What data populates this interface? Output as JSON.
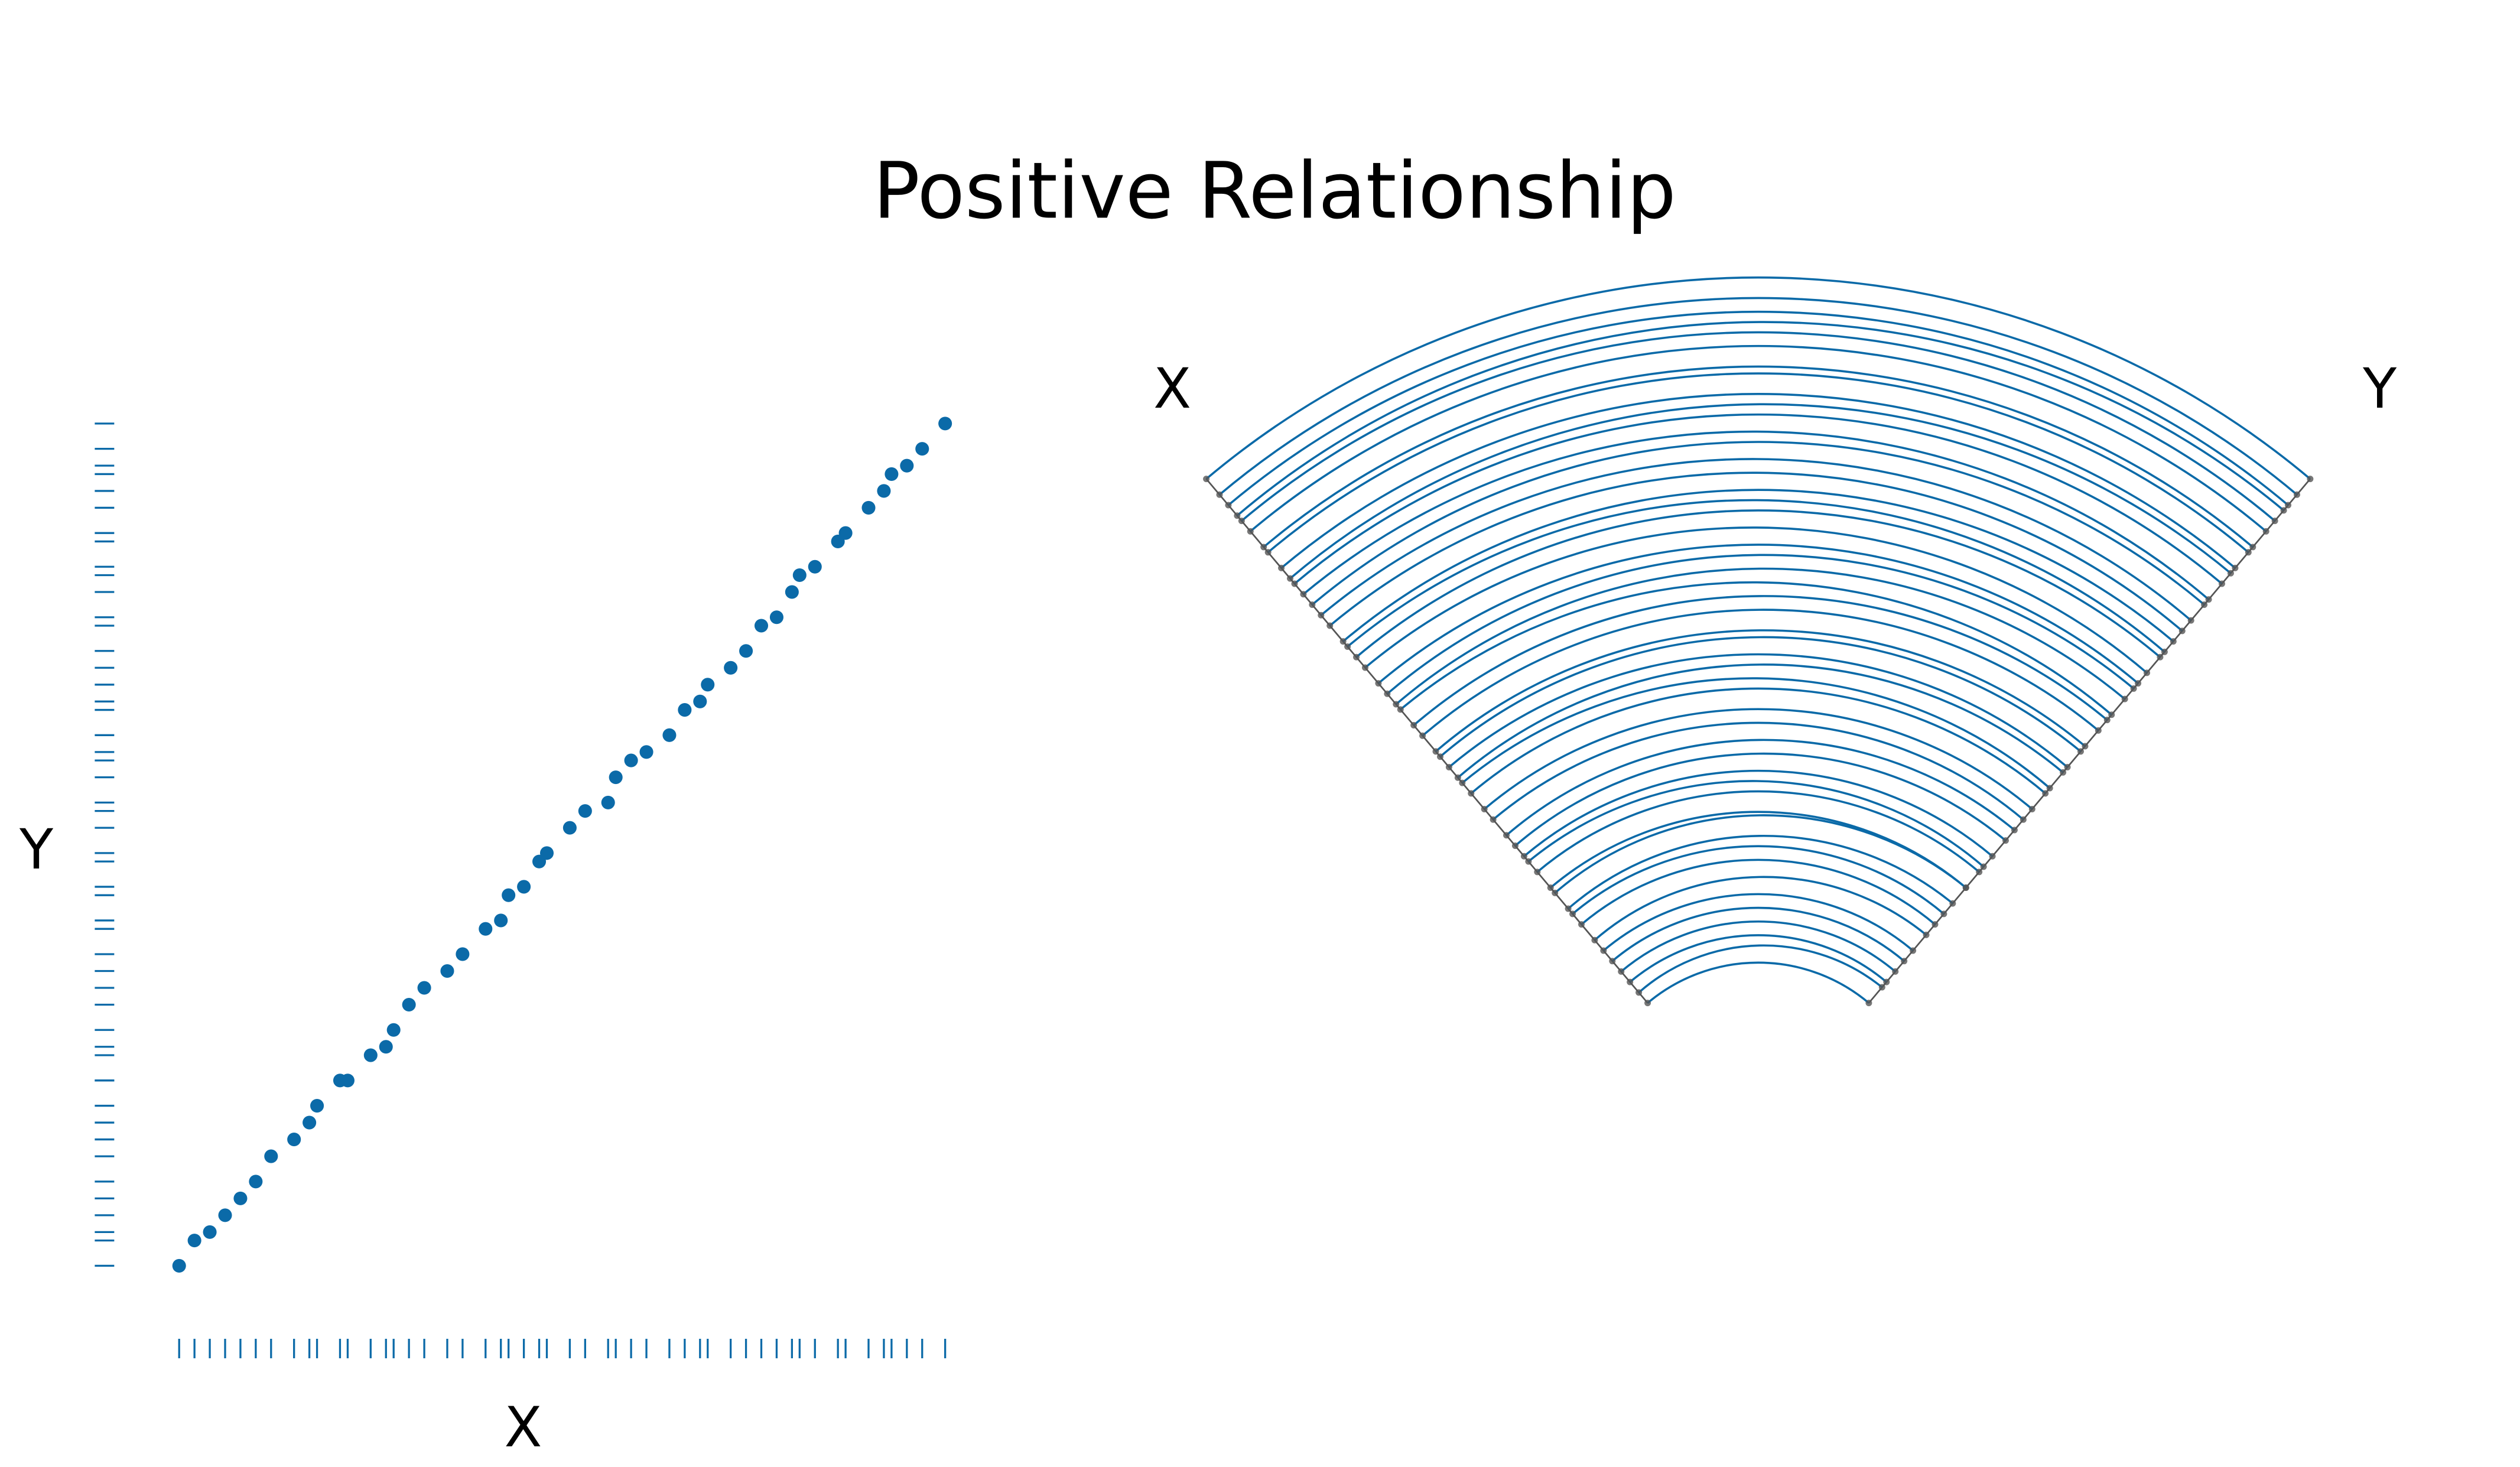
{
  "chart_data": {
    "type": "scatter",
    "title": "Positive Relationship",
    "x_label": "X",
    "y_label": "Y",
    "color": "#0b6aa8",
    "x": [
      0,
      0.02,
      0.04,
      0.06,
      0.08,
      0.1,
      0.12,
      0.15,
      0.17,
      0.18,
      0.21,
      0.22,
      0.25,
      0.27,
      0.28,
      0.3,
      0.32,
      0.35,
      0.37,
      0.4,
      0.42,
      0.43,
      0.45,
      0.47,
      0.48,
      0.51,
      0.53,
      0.56,
      0.57,
      0.59,
      0.61,
      0.64,
      0.66,
      0.68,
      0.69,
      0.72,
      0.74,
      0.76,
      0.78,
      0.8,
      0.81,
      0.83,
      0.86,
      0.87,
      0.9,
      0.92,
      0.93,
      0.95,
      0.97,
      1
    ],
    "y": [
      0,
      0.03,
      0.04,
      0.06,
      0.08,
      0.1,
      0.13,
      0.15,
      0.17,
      0.19,
      0.22,
      0.22,
      0.25,
      0.26,
      0.28,
      0.31,
      0.33,
      0.35,
      0.37,
      0.4,
      0.41,
      0.44,
      0.45,
      0.48,
      0.49,
      0.52,
      0.54,
      0.55,
      0.58,
      0.6,
      0.61,
      0.63,
      0.66,
      0.67,
      0.69,
      0.71,
      0.73,
      0.76,
      0.77,
      0.8,
      0.82,
      0.83,
      0.86,
      0.87,
      0.9,
      0.92,
      0.94,
      0.95,
      0.97,
      1
    ]
  }
}
